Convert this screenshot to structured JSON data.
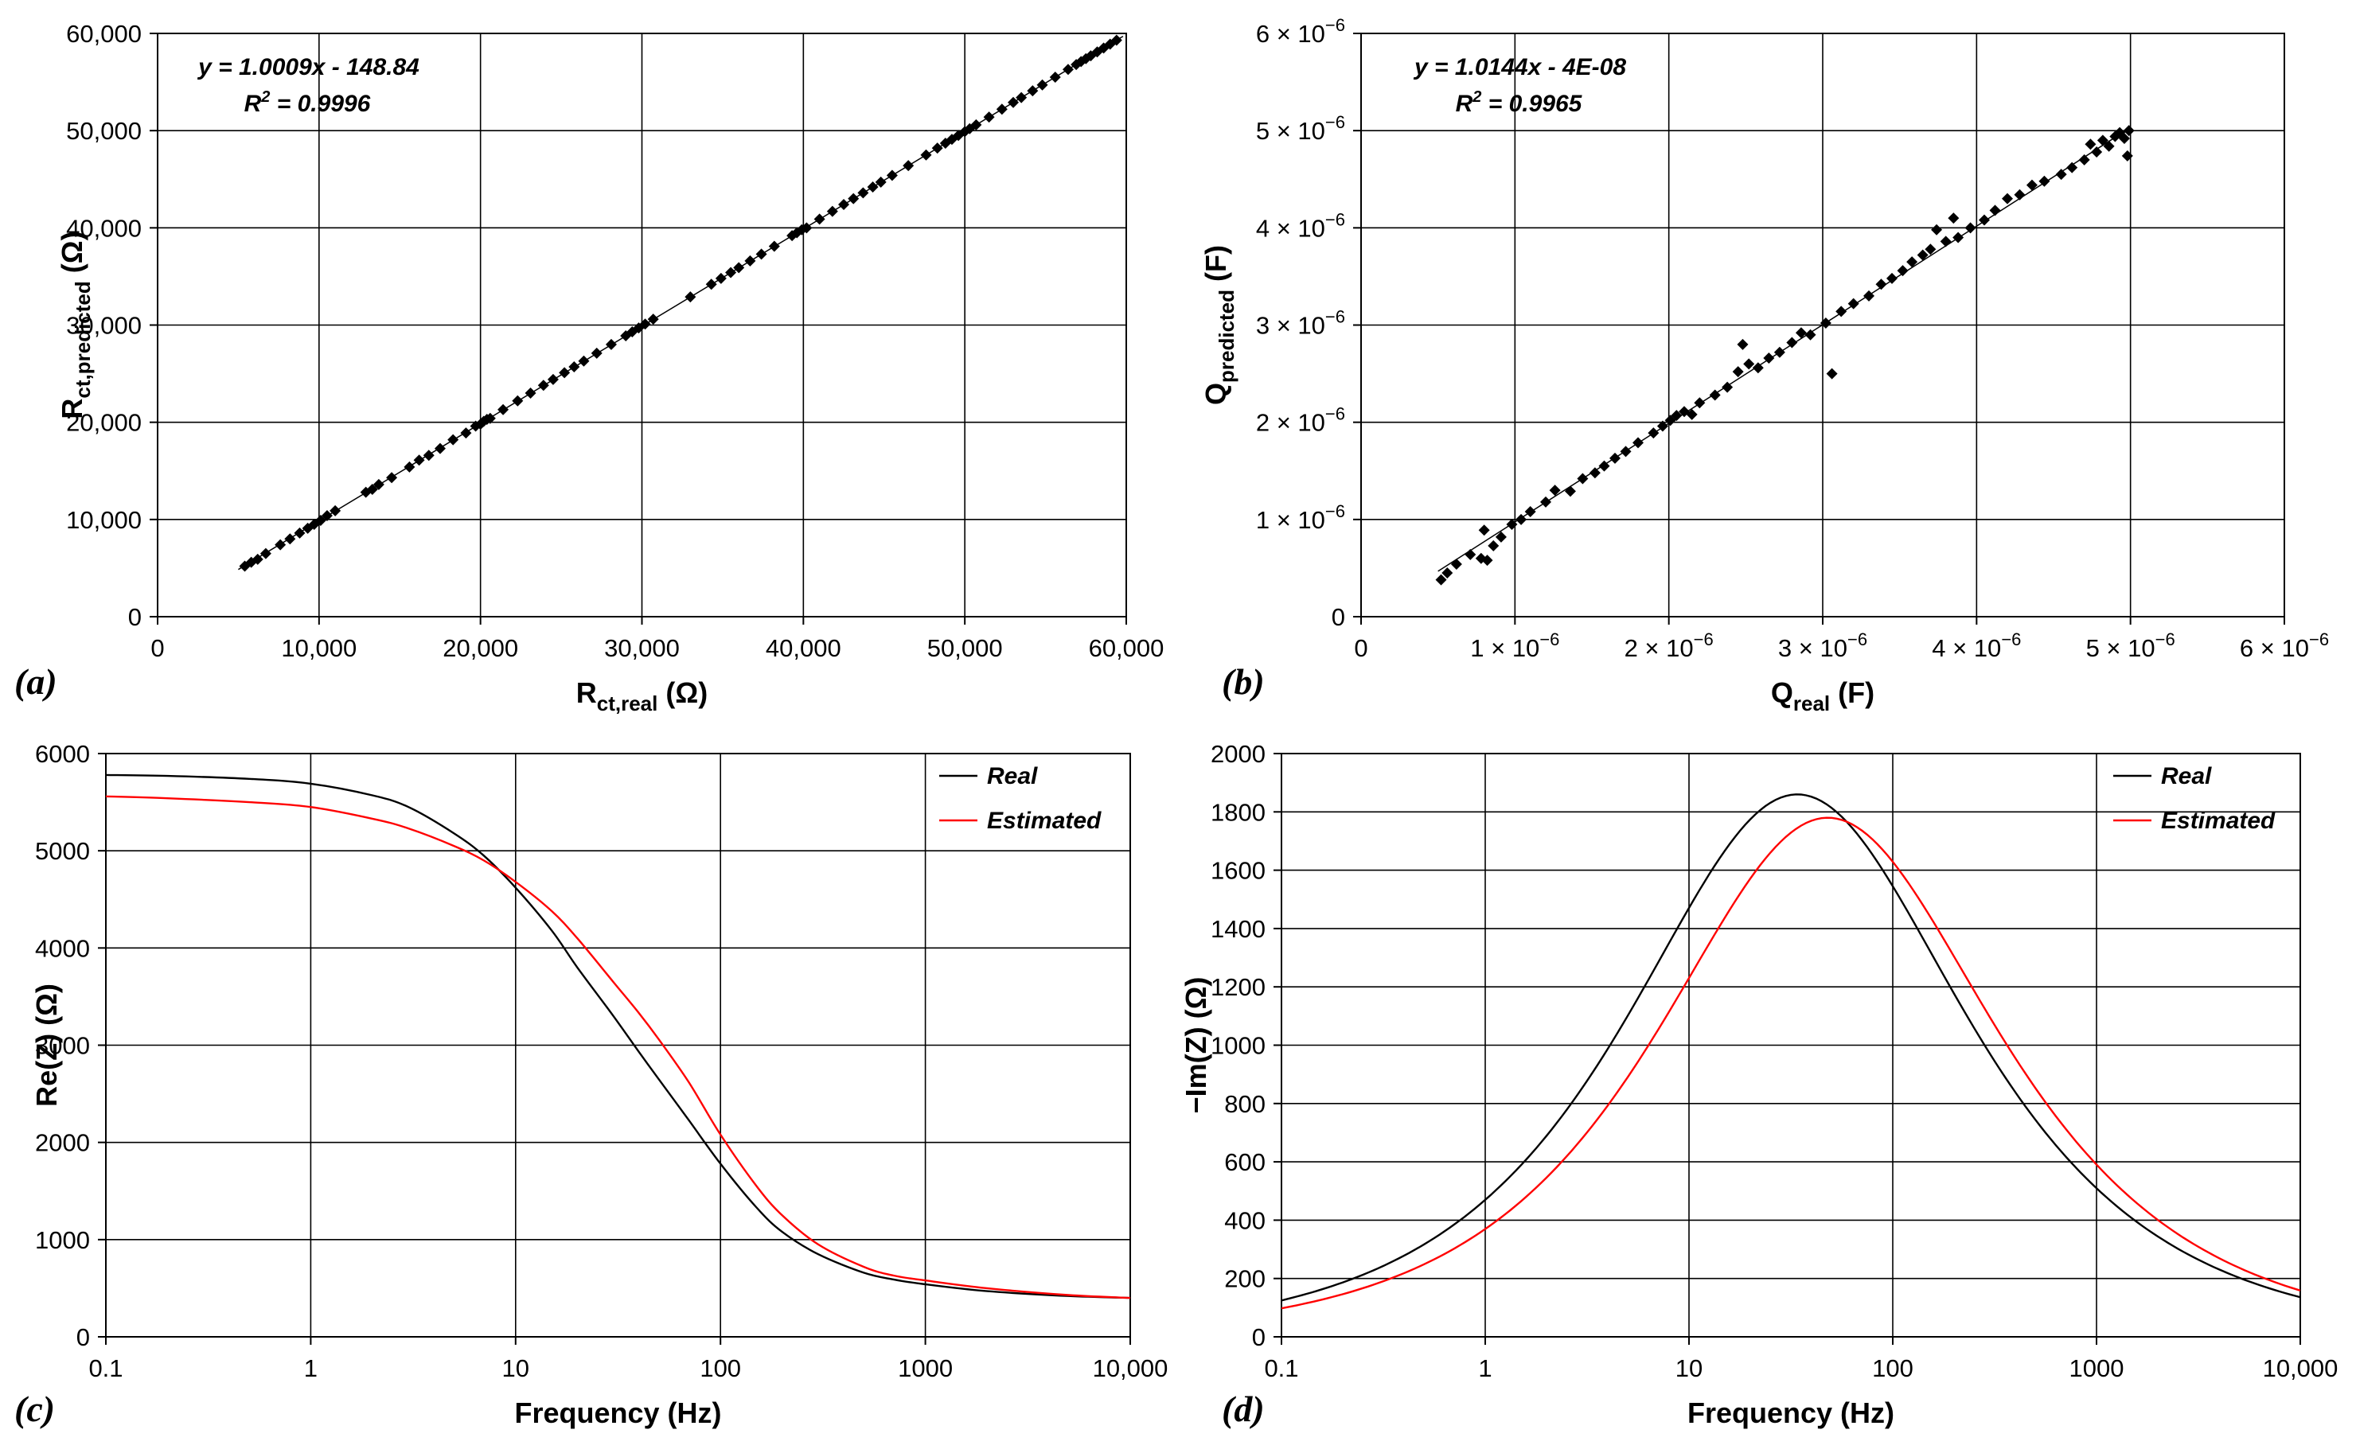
{
  "chart_data": [
    {
      "id": "a",
      "type": "scatter",
      "panel_label": "(a)",
      "xlabel": "R_ct,real (Ω)",
      "ylabel": "R_ct,predicted (Ω)",
      "x_label_parts": {
        "main": "R",
        "sub": "ct,real",
        "unit": " (Ω)"
      },
      "y_label_parts": {
        "main": "R",
        "sub": "ct,predicted",
        "unit": " (Ω)"
      },
      "xlim": [
        0,
        60000
      ],
      "ylim": [
        0,
        60000
      ],
      "x_ticks": [
        "0",
        "10,000",
        "20,000",
        "30,000",
        "40,000",
        "50,000",
        "60,000"
      ],
      "y_ticks": [
        "0",
        "10,000",
        "20,000",
        "30,000",
        "40,000",
        "50,000",
        "60,000"
      ],
      "x_tick_values": [
        0,
        10000,
        20000,
        30000,
        40000,
        50000,
        60000
      ],
      "y_tick_values": [
        0,
        10000,
        20000,
        30000,
        40000,
        50000,
        60000
      ],
      "equation": "y = 1.0009x - 148.84",
      "r2_label": "R",
      "r2_value": " = 0.9996",
      "trendline": {
        "slope": 1.0009,
        "intercept": -148.84
      },
      "grid": true,
      "points": [
        [
          5400,
          5200
        ],
        [
          5800,
          5600
        ],
        [
          6200,
          5900
        ],
        [
          6700,
          6500
        ],
        [
          7600,
          7400
        ],
        [
          8200,
          8000
        ],
        [
          8800,
          8600
        ],
        [
          9300,
          9100
        ],
        [
          9700,
          9500
        ],
        [
          10100,
          9900
        ],
        [
          10500,
          10400
        ],
        [
          11000,
          10900
        ],
        [
          12900,
          12800
        ],
        [
          13300,
          13100
        ],
        [
          13700,
          13600
        ],
        [
          14500,
          14300
        ],
        [
          15600,
          15400
        ],
        [
          16200,
          16100
        ],
        [
          16800,
          16600
        ],
        [
          17500,
          17300
        ],
        [
          18300,
          18200
        ],
        [
          19100,
          18900
        ],
        [
          19700,
          19600
        ],
        [
          20000,
          19800
        ],
        [
          20200,
          20100
        ],
        [
          20400,
          20300
        ],
        [
          20600,
          20400
        ],
        [
          21400,
          21300
        ],
        [
          22300,
          22200
        ],
        [
          23100,
          23000
        ],
        [
          23900,
          23800
        ],
        [
          24500,
          24400
        ],
        [
          25200,
          25100
        ],
        [
          25800,
          25700
        ],
        [
          26400,
          26300
        ],
        [
          27200,
          27100
        ],
        [
          28100,
          28000
        ],
        [
          29000,
          28900
        ],
        [
          29400,
          29300
        ],
        [
          29800,
          29700
        ],
        [
          30200,
          30100
        ],
        [
          30700,
          30600
        ],
        [
          33000,
          32900
        ],
        [
          34300,
          34200
        ],
        [
          34900,
          34800
        ],
        [
          35500,
          35400
        ],
        [
          36000,
          35900
        ],
        [
          36700,
          36600
        ],
        [
          37400,
          37300
        ],
        [
          38200,
          38100
        ],
        [
          39300,
          39200
        ],
        [
          39600,
          39500
        ],
        [
          39900,
          39800
        ],
        [
          40200,
          40000
        ],
        [
          41000,
          40900
        ],
        [
          41800,
          41700
        ],
        [
          42500,
          42400
        ],
        [
          43100,
          43000
        ],
        [
          43700,
          43600
        ],
        [
          44300,
          44200
        ],
        [
          44800,
          44700
        ],
        [
          45500,
          45400
        ],
        [
          46500,
          46400
        ],
        [
          47600,
          47500
        ],
        [
          48300,
          48200
        ],
        [
          48800,
          48700
        ],
        [
          49200,
          49100
        ],
        [
          49600,
          49500
        ],
        [
          50000,
          49900
        ],
        [
          50300,
          50200
        ],
        [
          50700,
          50600
        ],
        [
          51500,
          51400
        ],
        [
          52300,
          52200
        ],
        [
          53000,
          52900
        ],
        [
          53500,
          53400
        ],
        [
          54200,
          54100
        ],
        [
          54800,
          54700
        ],
        [
          55600,
          55500
        ],
        [
          56400,
          56300
        ],
        [
          56900,
          56800
        ],
        [
          57200,
          57100
        ],
        [
          57500,
          57400
        ],
        [
          57800,
          57700
        ],
        [
          58200,
          58100
        ],
        [
          58600,
          58500
        ],
        [
          59000,
          58900
        ],
        [
          59400,
          59300
        ]
      ]
    },
    {
      "id": "b",
      "type": "scatter",
      "panel_label": "(b)",
      "xlabel": "Q_real (F)",
      "ylabel": "Q_predicted (F)",
      "x_label_parts": {
        "main": "Q",
        "sub": "real",
        "unit": " (F)"
      },
      "y_label_parts": {
        "main": "Q",
        "sub": "predicted",
        "unit": " (F)"
      },
      "xlim": [
        0,
        6e-06
      ],
      "ylim": [
        0,
        6e-06
      ],
      "x_ticks": [
        "0",
        "1 × 10",
        "2 × 10",
        "3 × 10",
        "4 × 10",
        "5 × 10",
        "6 × 10"
      ],
      "y_ticks": [
        "0",
        "1 × 10",
        "2 × 10",
        "3 × 10",
        "4 × 10",
        "5 × 10",
        "6 × 10"
      ],
      "tick_exponent": "−6",
      "x_tick_values": [
        0,
        1e-06,
        2e-06,
        3e-06,
        4e-06,
        5e-06,
        6e-06
      ],
      "y_tick_values": [
        0,
        1e-06,
        2e-06,
        3e-06,
        4e-06,
        5e-06,
        6e-06
      ],
      "equation": "y = 1.0144x - 4E-08",
      "r2_label": "R",
      "r2_value": " = 0.9965",
      "trendline": {
        "slope": 1.0144,
        "intercept": -4e-08
      },
      "grid": true,
      "points": [
        [
          5.2e-07,
          3.8e-07
        ],
        [
          5.6e-07,
          4.5e-07
        ],
        [
          6.2e-07,
          5.4e-07
        ],
        [
          7.1e-07,
          6.4e-07
        ],
        [
          7.8e-07,
          6e-07
        ],
        [
          8e-07,
          8.9e-07
        ],
        [
          8.2e-07,
          5.8e-07
        ],
        [
          8.6e-07,
          7.3e-07
        ],
        [
          9.1e-07,
          8.2e-07
        ],
        [
          9.8e-07,
          9.5e-07
        ],
        [
          1.04e-06,
          1e-06
        ],
        [
          1.1e-06,
          1.08e-06
        ],
        [
          1.2e-06,
          1.18e-06
        ],
        [
          1.26e-06,
          1.3e-06
        ],
        [
          1.36e-06,
          1.29e-06
        ],
        [
          1.44e-06,
          1.42e-06
        ],
        [
          1.52e-06,
          1.48e-06
        ],
        [
          1.58e-06,
          1.55e-06
        ],
        [
          1.65e-06,
          1.63e-06
        ],
        [
          1.72e-06,
          1.7e-06
        ],
        [
          1.8e-06,
          1.79e-06
        ],
        [
          1.9e-06,
          1.89e-06
        ],
        [
          1.96e-06,
          1.96e-06
        ],
        [
          2.01e-06,
          2.02e-06
        ],
        [
          2.05e-06,
          2.07e-06
        ],
        [
          2.1e-06,
          2.11e-06
        ],
        [
          2.15e-06,
          2.08e-06
        ],
        [
          2.2e-06,
          2.2e-06
        ],
        [
          2.3e-06,
          2.28e-06
        ],
        [
          2.38e-06,
          2.36e-06
        ],
        [
          2.45e-06,
          2.52e-06
        ],
        [
          2.48e-06,
          2.8e-06
        ],
        [
          2.52e-06,
          2.6e-06
        ],
        [
          2.58e-06,
          2.56e-06
        ],
        [
          2.65e-06,
          2.66e-06
        ],
        [
          2.72e-06,
          2.72e-06
        ],
        [
          2.8e-06,
          2.82e-06
        ],
        [
          2.86e-06,
          2.92e-06
        ],
        [
          2.92e-06,
          2.9e-06
        ],
        [
          3.02e-06,
          3.02e-06
        ],
        [
          3.06e-06,
          2.5e-06
        ],
        [
          3.12e-06,
          3.14e-06
        ],
        [
          3.2e-06,
          3.22e-06
        ],
        [
          3.3e-06,
          3.3e-06
        ],
        [
          3.38e-06,
          3.42e-06
        ],
        [
          3.45e-06,
          3.48e-06
        ],
        [
          3.52e-06,
          3.56e-06
        ],
        [
          3.58e-06,
          3.65e-06
        ],
        [
          3.65e-06,
          3.72e-06
        ],
        [
          3.7e-06,
          3.78e-06
        ],
        [
          3.74e-06,
          3.98e-06
        ],
        [
          3.8e-06,
          3.86e-06
        ],
        [
          3.85e-06,
          4.1e-06
        ],
        [
          3.88e-06,
          3.9e-06
        ],
        [
          3.96e-06,
          4e-06
        ],
        [
          4.05e-06,
          4.08e-06
        ],
        [
          4.12e-06,
          4.18e-06
        ],
        [
          4.2e-06,
          4.3e-06
        ],
        [
          4.28e-06,
          4.34e-06
        ],
        [
          4.36e-06,
          4.44e-06
        ],
        [
          4.44e-06,
          4.48e-06
        ],
        [
          4.55e-06,
          4.55e-06
        ],
        [
          4.62e-06,
          4.62e-06
        ],
        [
          4.7e-06,
          4.7e-06
        ],
        [
          4.74e-06,
          4.86e-06
        ],
        [
          4.78e-06,
          4.78e-06
        ],
        [
          4.82e-06,
          4.9e-06
        ],
        [
          4.86e-06,
          4.84e-06
        ],
        [
          4.9e-06,
          4.94e-06
        ],
        [
          4.93e-06,
          4.98e-06
        ],
        [
          4.96e-06,
          4.92e-06
        ],
        [
          4.98e-06,
          4.74e-06
        ],
        [
          4.99e-06,
          5e-06
        ]
      ]
    },
    {
      "id": "c",
      "type": "line",
      "panel_label": "(c)",
      "xlabel": "Frequency (Hz)",
      "ylabel": "Re(Z) (Ω)",
      "x_scale": "log",
      "xlim": [
        0.1,
        10000
      ],
      "ylim": [
        0,
        6000
      ],
      "x_ticks": [
        "0.1",
        "1",
        "10",
        "100",
        "1000",
        "10,000"
      ],
      "y_ticks": [
        "0",
        "1000",
        "2000",
        "3000",
        "4000",
        "5000",
        "6000"
      ],
      "x_tick_values": [
        0.1,
        1,
        10,
        100,
        1000,
        10000
      ],
      "y_tick_values": [
        0,
        1000,
        2000,
        3000,
        4000,
        5000,
        6000
      ],
      "grid": true,
      "legend_position": "top-right",
      "series": [
        {
          "name": "Real",
          "color": "#000000",
          "x": [
            0.1,
            0.2,
            0.5,
            1,
            2,
            3,
            5,
            7,
            10,
            15,
            20,
            30,
            40,
            50,
            70,
            100,
            150,
            200,
            300,
            500,
            700,
            1000,
            2000,
            5000,
            10000
          ],
          "y": [
            5780,
            5770,
            5740,
            5690,
            5570,
            5450,
            5180,
            4950,
            4620,
            4180,
            3800,
            3300,
            2930,
            2650,
            2230,
            1780,
            1330,
            1080,
            850,
            660,
            590,
            540,
            470,
            420,
            400
          ]
        },
        {
          "name": "Estimated",
          "color": "#ff0000",
          "x": [
            0.1,
            0.2,
            0.5,
            1,
            2,
            3,
            5,
            7,
            10,
            15,
            20,
            30,
            40,
            50,
            70,
            100,
            150,
            200,
            300,
            500,
            700,
            1000,
            2000,
            5000,
            10000
          ],
          "y": [
            5560,
            5540,
            5500,
            5450,
            5330,
            5230,
            5050,
            4900,
            4680,
            4380,
            4100,
            3650,
            3330,
            3060,
            2620,
            2080,
            1550,
            1250,
            950,
            720,
            630,
            580,
            500,
            430,
            400
          ]
        }
      ]
    },
    {
      "id": "d",
      "type": "line",
      "panel_label": "(d)",
      "xlabel": "Frequency (Hz)",
      "ylabel": "−Im(Z) (Ω)",
      "x_scale": "log",
      "xlim": [
        0.1,
        10000
      ],
      "ylim": [
        0,
        2000
      ],
      "x_ticks": [
        "0.1",
        "1",
        "10",
        "100",
        "1000",
        "10,000"
      ],
      "y_ticks": [
        "0",
        "200",
        "400",
        "600",
        "800",
        "1000",
        "1200",
        "1400",
        "1600",
        "1800",
        "2000"
      ],
      "x_tick_values": [
        0.1,
        1,
        10,
        100,
        1000,
        10000
      ],
      "y_tick_values": [
        0,
        200,
        400,
        600,
        800,
        1000,
        1200,
        1400,
        1600,
        1800,
        2000
      ],
      "grid": true,
      "legend_position": "top-right",
      "series": [
        {
          "name": "Real",
          "color": "#000000",
          "peak_x": 34,
          "peak_y": 1860,
          "half_width_decades": 1.63
        },
        {
          "name": "Estimated",
          "color": "#ff0000",
          "peak_x": 48,
          "peak_y": 1780,
          "half_width_decades": 1.63
        }
      ]
    }
  ]
}
